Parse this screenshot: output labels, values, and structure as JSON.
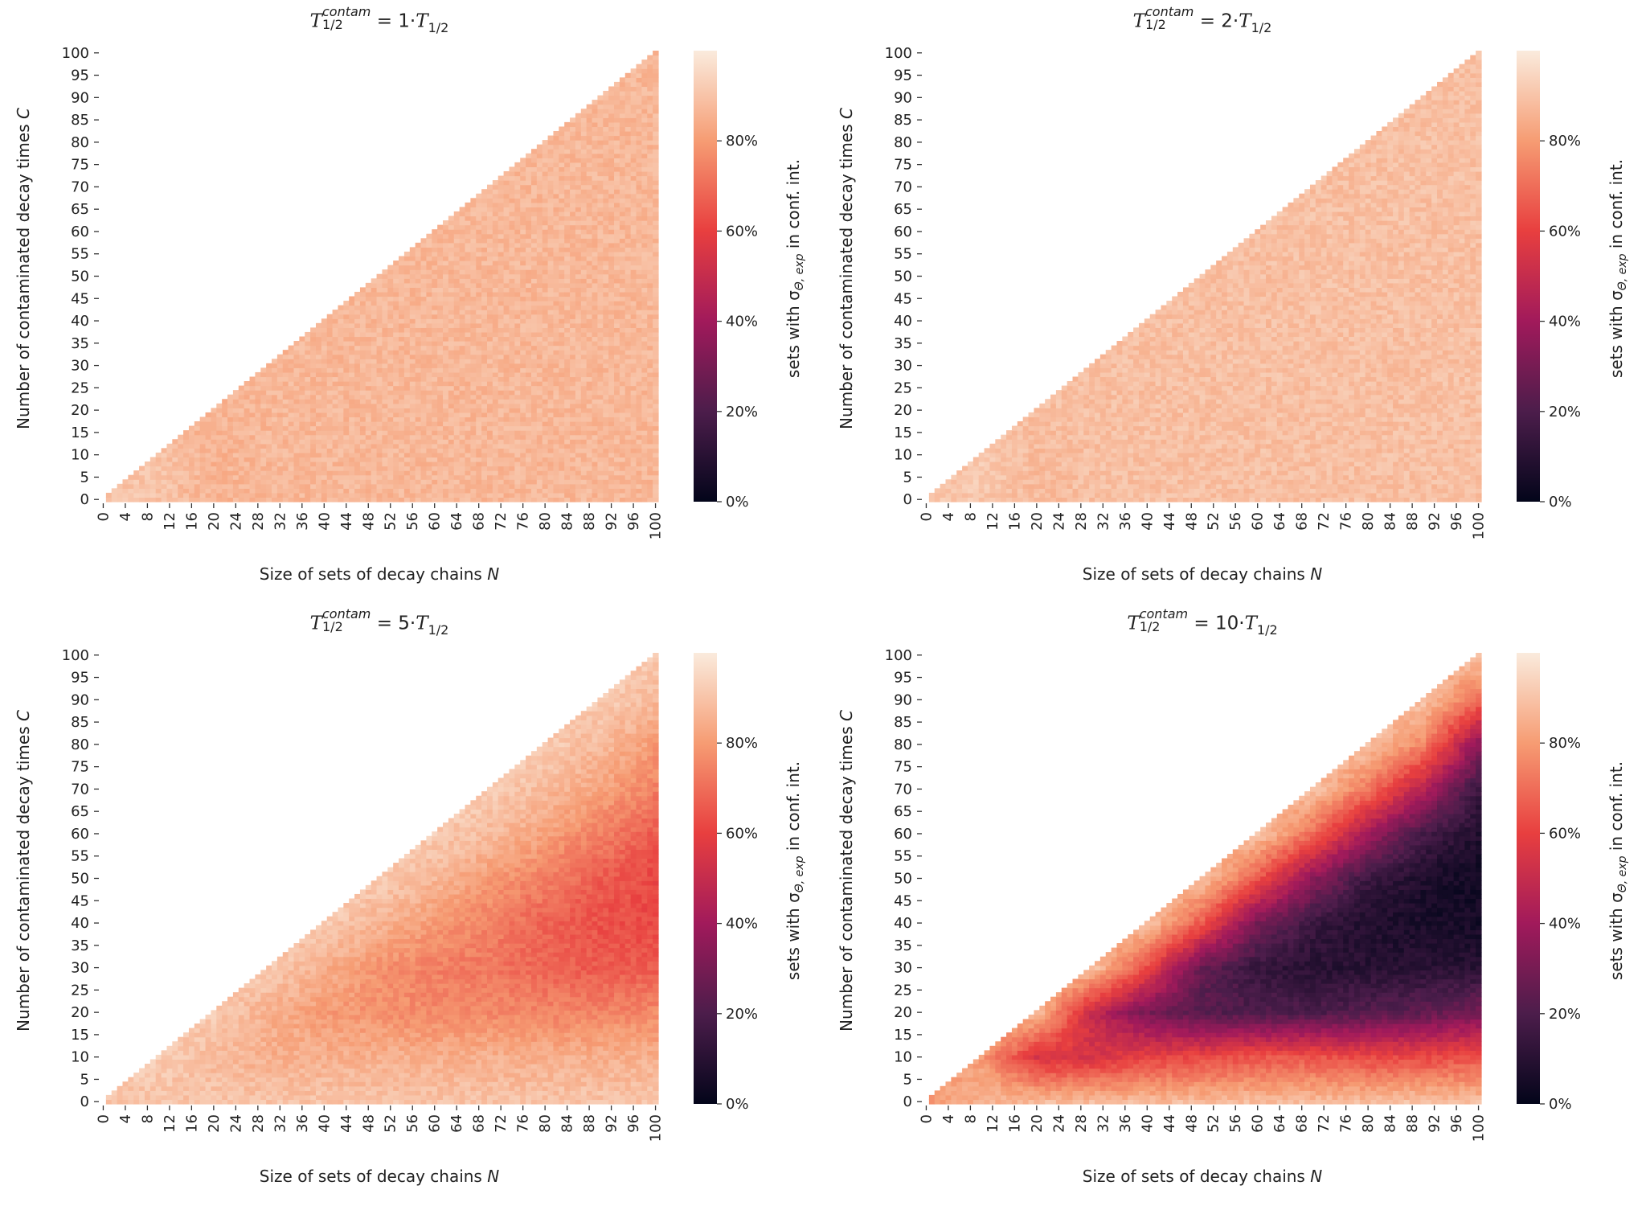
{
  "figure": {
    "y_label_text": "Number of contaminated decay times ",
    "y_label_var": "C",
    "x_label_text": "Size of sets of decay chains ",
    "x_label_var": "N",
    "title_T": "T",
    "title_sup": "contam",
    "title_sub": "1/2",
    "title_eq": " = ",
    "title_suffix_T": "T",
    "title_suffix_sub": "1/2",
    "colorbar_label_pre": "sets with σ",
    "colorbar_label_sub": "Θ, exp",
    "colorbar_label_post": " in conf. int.",
    "colorbar_ticks": [
      "0%",
      "20%",
      "40%",
      "60%",
      "80%"
    ],
    "colormap": "rocket",
    "colormap_stops": [
      "#03051a",
      "#4c1d4b",
      "#a11a5b",
      "#e83f3f",
      "#f69c73",
      "#faebdd"
    ]
  },
  "chart_data": [
    {
      "type": "heatmap",
      "multiplier": "1·",
      "x_ticks": [
        0,
        4,
        8,
        12,
        16,
        20,
        24,
        28,
        32,
        36,
        40,
        44,
        48,
        52,
        56,
        60,
        64,
        68,
        72,
        76,
        80,
        84,
        88,
        92,
        96,
        100
      ],
      "y_ticks": [
        0,
        5,
        10,
        15,
        20,
        25,
        30,
        35,
        40,
        45,
        50,
        55,
        60,
        65,
        70,
        75,
        80,
        85,
        90,
        95,
        100
      ],
      "xlim": [
        0,
        100
      ],
      "ylim": [
        0,
        100
      ],
      "value_range_percent": [
        0,
        100
      ],
      "mask": "C > N",
      "grid_step": 10,
      "values_percent_by_C_rows": [
        [
          90,
          90,
          86,
          87,
          87,
          87,
          87,
          87,
          87,
          87,
          87
        ],
        [
          null,
          90,
          86,
          87,
          87,
          87,
          87,
          87,
          87,
          87,
          87
        ],
        [
          null,
          null,
          86,
          87,
          87,
          87,
          87,
          87,
          87,
          87,
          87
        ],
        [
          null,
          null,
          null,
          87,
          87,
          87,
          87,
          87,
          87,
          87,
          87
        ],
        [
          null,
          null,
          null,
          null,
          87,
          87,
          87,
          87,
          87,
          87,
          87
        ],
        [
          null,
          null,
          null,
          null,
          null,
          87,
          87,
          87,
          87,
          87,
          87
        ],
        [
          null,
          null,
          null,
          null,
          null,
          null,
          87,
          87,
          87,
          87,
          87
        ],
        [
          null,
          null,
          null,
          null,
          null,
          null,
          null,
          87,
          87,
          87,
          87
        ],
        [
          null,
          null,
          null,
          null,
          null,
          null,
          null,
          null,
          87,
          87,
          87
        ],
        [
          null,
          null,
          null,
          null,
          null,
          null,
          null,
          null,
          null,
          87,
          87
        ],
        [
          null,
          null,
          null,
          null,
          null,
          null,
          null,
          null,
          null,
          null,
          87
        ]
      ]
    },
    {
      "type": "heatmap",
      "multiplier": "2·",
      "x_ticks": [
        0,
        4,
        8,
        12,
        16,
        20,
        24,
        28,
        32,
        36,
        40,
        44,
        48,
        52,
        56,
        60,
        64,
        68,
        72,
        76,
        80,
        84,
        88,
        92,
        96,
        100
      ],
      "y_ticks": [
        0,
        5,
        10,
        15,
        20,
        25,
        30,
        35,
        40,
        45,
        50,
        55,
        60,
        65,
        70,
        75,
        80,
        85,
        90,
        95,
        100
      ],
      "xlim": [
        0,
        100
      ],
      "ylim": [
        0,
        100
      ],
      "value_range_percent": [
        0,
        100
      ],
      "mask": "C > N",
      "grid_step": 10,
      "values_percent_by_C_rows": [
        [
          91,
          91,
          88,
          89,
          89,
          89,
          89,
          89,
          89,
          89,
          89
        ],
        [
          null,
          91,
          88,
          89,
          89,
          89,
          89,
          89,
          89,
          89,
          89
        ],
        [
          null,
          null,
          89,
          89,
          89,
          89,
          89,
          89,
          89,
          89,
          89
        ],
        [
          null,
          null,
          null,
          89,
          89,
          89,
          89,
          89,
          89,
          89,
          89
        ],
        [
          null,
          null,
          null,
          null,
          89,
          89,
          89,
          89,
          89,
          89,
          89
        ],
        [
          null,
          null,
          null,
          null,
          null,
          89,
          89,
          89,
          89,
          89,
          89
        ],
        [
          null,
          null,
          null,
          null,
          null,
          null,
          89,
          89,
          89,
          89,
          89
        ],
        [
          null,
          null,
          null,
          null,
          null,
          null,
          null,
          89,
          89,
          89,
          89
        ],
        [
          null,
          null,
          null,
          null,
          null,
          null,
          null,
          null,
          89,
          89,
          89
        ],
        [
          null,
          null,
          null,
          null,
          null,
          null,
          null,
          null,
          null,
          89,
          89
        ],
        [
          null,
          null,
          null,
          null,
          null,
          null,
          null,
          null,
          null,
          null,
          89
        ]
      ]
    },
    {
      "type": "heatmap",
      "multiplier": "5·",
      "x_ticks": [
        0,
        4,
        8,
        12,
        16,
        20,
        24,
        28,
        32,
        36,
        40,
        44,
        48,
        52,
        56,
        60,
        64,
        68,
        72,
        76,
        80,
        84,
        88,
        92,
        96,
        100
      ],
      "y_ticks": [
        0,
        5,
        10,
        15,
        20,
        25,
        30,
        35,
        40,
        45,
        50,
        55,
        60,
        65,
        70,
        75,
        80,
        85,
        90,
        95,
        100
      ],
      "xlim": [
        0,
        100
      ],
      "ylim": [
        0,
        100
      ],
      "value_range_percent": [
        0,
        100
      ],
      "mask": "C > N",
      "grid_step": 10,
      "values_percent_by_C_rows": [
        [
          90,
          90,
          90,
          90,
          90,
          90,
          90,
          90,
          90,
          90,
          90
        ],
        [
          null,
          92,
          88,
          85,
          85,
          85,
          85,
          85,
          85,
          85,
          85
        ],
        [
          null,
          null,
          92,
          85,
          80,
          78,
          76,
          76,
          75,
          75,
          76
        ],
        [
          null,
          null,
          null,
          92,
          85,
          78,
          74,
          72,
          68,
          66,
          66
        ],
        [
          null,
          null,
          null,
          null,
          92,
          86,
          80,
          74,
          68,
          64,
          62
        ],
        [
          null,
          null,
          null,
          null,
          null,
          92,
          87,
          80,
          74,
          66,
          62
        ],
        [
          null,
          null,
          null,
          null,
          null,
          null,
          92,
          88,
          82,
          74,
          66
        ],
        [
          null,
          null,
          null,
          null,
          null,
          null,
          null,
          92,
          88,
          82,
          74
        ],
        [
          null,
          null,
          null,
          null,
          null,
          null,
          null,
          null,
          92,
          88,
          80
        ],
        [
          null,
          null,
          null,
          null,
          null,
          null,
          null,
          null,
          null,
          92,
          88
        ],
        [
          null,
          null,
          null,
          null,
          null,
          null,
          null,
          null,
          null,
          null,
          92
        ]
      ]
    },
    {
      "type": "heatmap",
      "multiplier": "10·",
      "x_ticks": [
        0,
        4,
        8,
        12,
        16,
        20,
        24,
        28,
        32,
        36,
        40,
        44,
        48,
        52,
        56,
        60,
        64,
        68,
        72,
        76,
        80,
        84,
        88,
        92,
        96,
        100
      ],
      "y_ticks": [
        0,
        5,
        10,
        15,
        20,
        25,
        30,
        35,
        40,
        45,
        50,
        55,
        60,
        65,
        70,
        75,
        80,
        85,
        90,
        95,
        100
      ],
      "xlim": [
        0,
        100
      ],
      "ylim": [
        0,
        100
      ],
      "value_range_percent": [
        0,
        100
      ],
      "mask": "C > N",
      "grid_step": 10,
      "values_percent_by_C_rows": [
        [
          80,
          85,
          88,
          88,
          88,
          88,
          88,
          88,
          88,
          90,
          88
        ],
        [
          null,
          80,
          55,
          55,
          60,
          62,
          65,
          65,
          62,
          62,
          65
        ],
        [
          null,
          null,
          88,
          50,
          30,
          22,
          20,
          20,
          22,
          25,
          30
        ],
        [
          null,
          null,
          null,
          90,
          62,
          25,
          14,
          10,
          10,
          10,
          10
        ],
        [
          null,
          null,
          null,
          null,
          90,
          65,
          30,
          15,
          8,
          6,
          5
        ],
        [
          null,
          null,
          null,
          null,
          null,
          90,
          65,
          35,
          15,
          7,
          4
        ],
        [
          null,
          null,
          null,
          null,
          null,
          null,
          90,
          70,
          40,
          18,
          8
        ],
        [
          null,
          null,
          null,
          null,
          null,
          null,
          null,
          90,
          72,
          45,
          15
        ],
        [
          null,
          null,
          null,
          null,
          null,
          null,
          null,
          null,
          90,
          75,
          35
        ],
        [
          null,
          null,
          null,
          null,
          null,
          null,
          null,
          null,
          null,
          90,
          70
        ],
        [
          null,
          null,
          null,
          null,
          null,
          null,
          null,
          null,
          null,
          null,
          90
        ]
      ]
    }
  ]
}
